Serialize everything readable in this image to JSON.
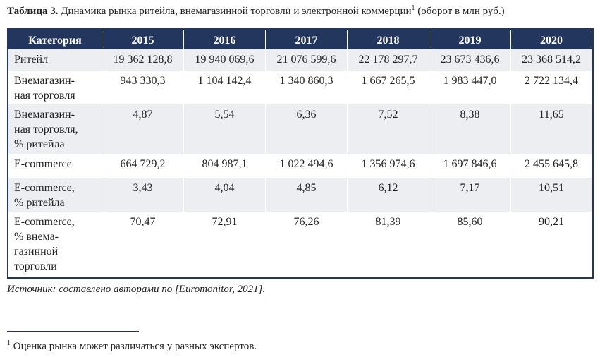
{
  "caption": {
    "label": "Таблица 3.",
    "text": "Динамика рынка ритейла, внемагазинной торговли и электронной коммерции",
    "sup": "1",
    "suffix": "(оборот в млн руб.)"
  },
  "table": {
    "header": [
      "Категория",
      "2015",
      "2016",
      "2017",
      "2018",
      "2019",
      "2020"
    ],
    "rows": [
      {
        "label": [
          "Ритейл"
        ],
        "cells": [
          "19 362 128,8",
          "19 940 069,6",
          "21 076 599,6",
          "22 178 297,7",
          "23 673 436,6",
          "23 368 514,2"
        ]
      },
      {
        "label": [
          "Внемагазин-",
          "ная торговля"
        ],
        "cells": [
          "943 330,3",
          "1 104 142,4",
          "1 340 860,3",
          "1 667 265,5",
          "1 983 447,0",
          "2 722 134,4"
        ]
      },
      {
        "label": [
          "Внемагазин-",
          "ная торговля,",
          "% ритейла"
        ],
        "cells": [
          "4,87",
          "5,54",
          "6,36",
          "7,52",
          "8,38",
          "11,65"
        ]
      },
      {
        "label": [
          "E-commerce"
        ],
        "cells": [
          "664 729,2",
          "804 987,1",
          "1 022 494,6",
          "1 356 974,6",
          "1 697 846,6",
          "2 455 645,8"
        ]
      },
      {
        "label": [
          "E-commerce,",
          "% ритейла"
        ],
        "cells": [
          "3,43",
          "4,04",
          "4,85",
          "6,12",
          "7,17",
          "10,51"
        ]
      },
      {
        "label": [
          "E-commerce,",
          "% внема-",
          "газинной",
          "торговли"
        ],
        "cells": [
          "70,47",
          "72,91",
          "76,26",
          "81,39",
          "85,60",
          "90,21"
        ]
      }
    ]
  },
  "source": "Источник: составлено авторами по [Euromonitor, 2021].",
  "footnote": {
    "sup": "1",
    "text": "Оценка рынка может различаться у разных экспертов."
  }
}
